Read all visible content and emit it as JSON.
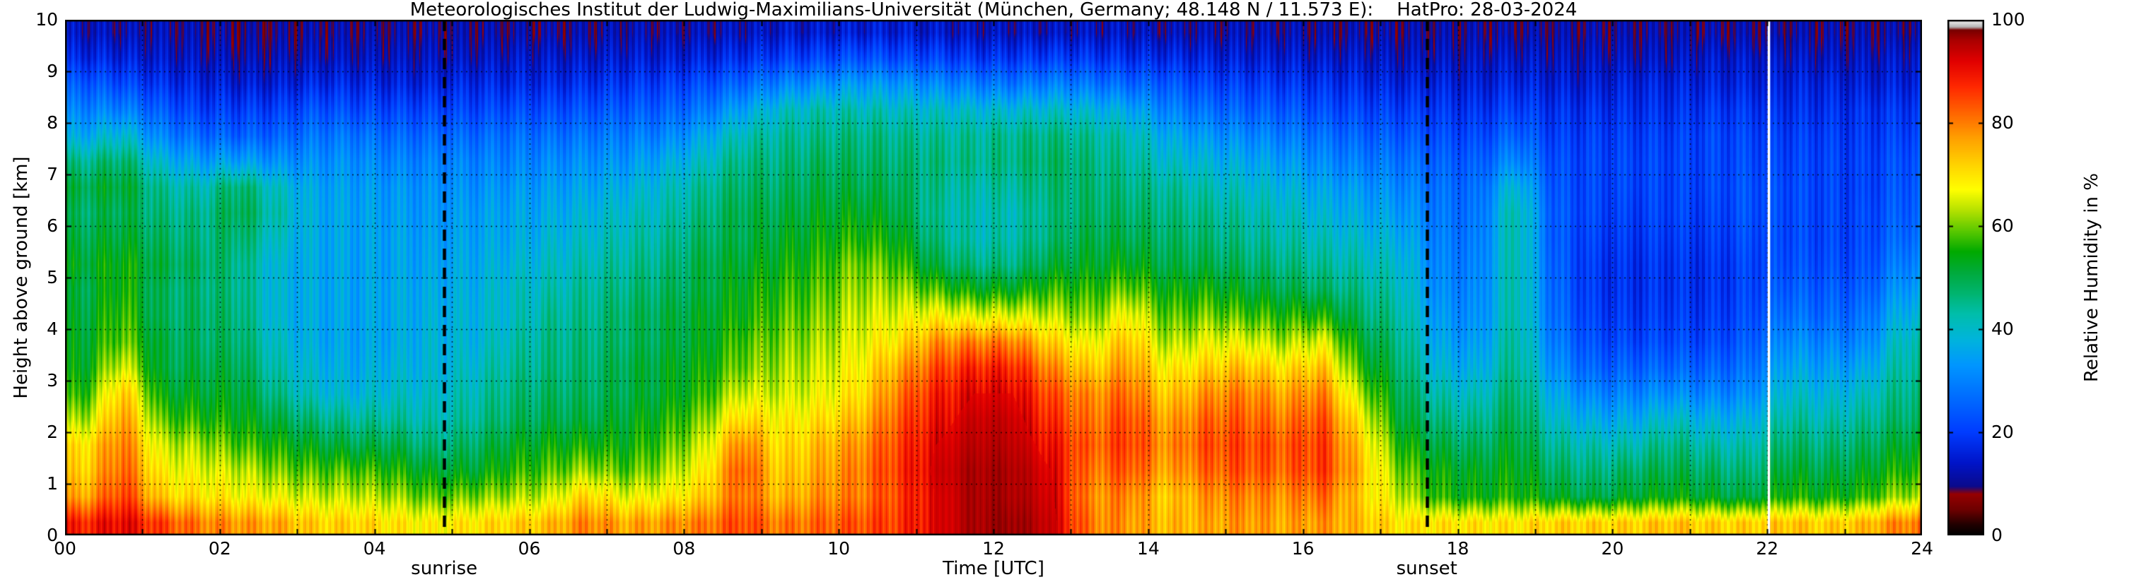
{
  "chart_data": {
    "type": "heatmap",
    "title": "Meteorologisches Institut der Ludwig-Maximilians-Universität (München, Germany; 48.148 N / 11.573 E):    HatPro: 28-03-2024",
    "xlabel": "Time [UTC]",
    "ylabel": "Height above ground [km]",
    "colorbar_label": "Relative Humidity in %",
    "xlim": [
      0,
      24
    ],
    "ylim": [
      0,
      10
    ],
    "clim": [
      0,
      100
    ],
    "x_tick_values": [
      0,
      2,
      4,
      6,
      8,
      10,
      12,
      14,
      16,
      18,
      20,
      22,
      24
    ],
    "x_tick_labels": [
      "00",
      "02",
      "04",
      "06",
      "08",
      "10",
      "12",
      "14",
      "16",
      "18",
      "20",
      "22",
      "24"
    ],
    "y_tick_values": [
      0,
      1,
      2,
      3,
      4,
      5,
      6,
      7,
      8,
      9,
      10
    ],
    "y_tick_labels": [
      "0",
      "1",
      "2",
      "3",
      "4",
      "5",
      "6",
      "7",
      "8",
      "9",
      "10"
    ],
    "colorbar_tick_values": [
      0,
      20,
      40,
      60,
      80,
      100
    ],
    "colorbar_tick_labels": [
      "0",
      "20",
      "40",
      "60",
      "80",
      "100"
    ],
    "grid": {
      "x_step_hours": 1,
      "y_step_km": 1,
      "style": "dotted",
      "color": "#000000"
    },
    "annotations": [
      {
        "type": "vline",
        "style": "dashed",
        "color": "#000000",
        "x": 4.9,
        "label": "sunrise"
      },
      {
        "type": "vline",
        "style": "dashed",
        "color": "#000000",
        "x": 17.6,
        "label": "sunset"
      },
      {
        "type": "vline",
        "style": "solid",
        "color": "#ffffff",
        "x": 22.02,
        "label": ""
      }
    ],
    "colormap": {
      "stops": [
        [
          0,
          "#000000"
        ],
        [
          2,
          "#1e0000"
        ],
        [
          5,
          "#6e0000"
        ],
        [
          8,
          "#960000"
        ],
        [
          9.5,
          "#0a0a8c"
        ],
        [
          14,
          "#0014c8"
        ],
        [
          20,
          "#003cff"
        ],
        [
          27,
          "#006eff"
        ],
        [
          33,
          "#0096ff"
        ],
        [
          38,
          "#00b4dc"
        ],
        [
          43,
          "#00beaa"
        ],
        [
          47,
          "#00b46e"
        ],
        [
          51,
          "#00aa3c"
        ],
        [
          55,
          "#00aa00"
        ],
        [
          59,
          "#5ac800"
        ],
        [
          63,
          "#b4e100"
        ],
        [
          67,
          "#ffff00"
        ],
        [
          72,
          "#ffd200"
        ],
        [
          77,
          "#ffa000"
        ],
        [
          82,
          "#ff6400"
        ],
        [
          87,
          "#ff2800"
        ],
        [
          92,
          "#e10000"
        ],
        [
          96,
          "#aa0000"
        ],
        [
          98,
          "#780000"
        ],
        [
          98.6,
          "#b4b4b4"
        ],
        [
          99.3,
          "#d8d8d8"
        ],
        [
          100,
          "#ffffff"
        ]
      ]
    },
    "grid_data": {
      "units": "percent_relative_humidity",
      "time_start": 0.25,
      "time_step": 0.5,
      "height_start": 0.25,
      "height_step": 0.5,
      "values": [
        [
          88,
          76,
          72,
          70,
          62,
          56,
          53,
          52,
          51,
          50,
          52,
          50,
          48,
          50,
          45,
          36,
          30,
          24,
          17,
          13
        ],
        [
          92,
          86,
          83,
          81,
          78,
          74,
          66,
          60,
          58,
          56,
          55,
          52,
          50,
          52,
          48,
          40,
          30,
          22,
          16,
          12
        ],
        [
          85,
          72,
          68,
          64,
          58,
          53,
          50,
          50,
          48,
          48,
          50,
          48,
          46,
          44,
          38,
          30,
          24,
          18,
          14,
          12
        ],
        [
          80,
          70,
          66,
          62,
          56,
          52,
          50,
          48,
          48,
          47,
          48,
          46,
          45,
          42,
          34,
          26,
          20,
          16,
          13,
          11
        ],
        [
          78,
          68,
          64,
          58,
          54,
          52,
          50,
          48,
          47,
          46,
          46,
          48,
          50,
          48,
          35,
          25,
          20,
          15,
          12,
          10
        ],
        [
          76,
          66,
          60,
          55,
          50,
          45,
          42,
          40,
          38,
          38,
          38,
          40,
          42,
          40,
          32,
          25,
          20,
          15,
          12,
          10
        ],
        [
          72,
          64,
          58,
          52,
          46,
          40,
          38,
          36,
          36,
          36,
          36,
          36,
          36,
          35,
          32,
          28,
          23,
          17,
          13,
          11
        ],
        [
          72,
          64,
          58,
          50,
          44,
          38,
          36,
          35,
          35,
          35,
          35,
          35,
          35,
          34,
          32,
          28,
          22,
          17,
          13,
          11
        ],
        [
          70,
          62,
          56,
          50,
          44,
          40,
          38,
          36,
          36,
          36,
          35,
          35,
          34,
          33,
          30,
          26,
          21,
          16,
          13,
          11
        ],
        [
          68,
          58,
          52,
          46,
          42,
          40,
          38,
          38,
          37,
          36,
          35,
          34,
          33,
          32,
          30,
          26,
          21,
          16,
          13,
          11
        ],
        [
          70,
          60,
          52,
          48,
          44,
          42,
          40,
          38,
          38,
          37,
          36,
          35,
          34,
          32,
          30,
          26,
          21,
          17,
          13,
          11
        ],
        [
          72,
          62,
          56,
          52,
          48,
          46,
          44,
          42,
          40,
          40,
          38,
          36,
          35,
          33,
          30,
          27,
          22,
          17,
          14,
          11
        ],
        [
          74,
          64,
          58,
          54,
          50,
          48,
          46,
          45,
          44,
          42,
          40,
          38,
          36,
          34,
          31,
          27,
          22,
          17,
          14,
          11
        ],
        [
          80,
          72,
          62,
          55,
          50,
          48,
          47,
          46,
          45,
          44,
          42,
          40,
          38,
          35,
          32,
          28,
          23,
          18,
          14,
          11
        ],
        [
          76,
          66,
          58,
          54,
          52,
          50,
          50,
          48,
          48,
          46,
          44,
          42,
          40,
          37,
          33,
          29,
          24,
          19,
          15,
          12
        ],
        [
          78,
          68,
          62,
          58,
          55,
          52,
          52,
          50,
          50,
          48,
          46,
          44,
          42,
          40,
          36,
          30,
          25,
          20,
          15,
          12
        ],
        [
          80,
          72,
          68,
          64,
          60,
          56,
          54,
          52,
          52,
          50,
          50,
          48,
          46,
          44,
          40,
          35,
          28,
          22,
          16,
          12
        ],
        [
          85,
          82,
          84,
          80,
          72,
          65,
          60,
          58,
          55,
          54,
          52,
          50,
          50,
          48,
          46,
          42,
          35,
          26,
          18,
          13
        ],
        [
          80,
          74,
          72,
          70,
          68,
          64,
          62,
          60,
          58,
          56,
          54,
          52,
          50,
          48,
          46,
          44,
          40,
          30,
          20,
          14
        ],
        [
          82,
          78,
          76,
          74,
          70,
          66,
          64,
          62,
          60,
          58,
          56,
          54,
          52,
          50,
          48,
          45,
          42,
          32,
          21,
          14
        ],
        [
          84,
          80,
          80,
          78,
          74,
          70,
          68,
          66,
          64,
          62,
          60,
          56,
          53,
          50,
          48,
          46,
          42,
          34,
          23,
          15
        ],
        [
          86,
          85,
          86,
          85,
          83,
          80,
          76,
          70,
          66,
          62,
          58,
          54,
          51,
          49,
          47,
          45,
          41,
          33,
          22,
          15
        ],
        [
          92,
          92,
          93,
          92,
          90,
          88,
          84,
          78,
          68,
          58,
          50,
          46,
          44,
          45,
          46,
          44,
          40,
          31,
          21,
          14
        ],
        [
          96,
          96,
          96,
          95,
          94,
          92,
          88,
          80,
          66,
          54,
          46,
          42,
          42,
          43,
          45,
          44,
          39,
          29,
          19,
          13
        ],
        [
          97,
          96,
          96,
          95,
          94,
          92,
          88,
          80,
          66,
          54,
          46,
          43,
          42,
          44,
          46,
          45,
          39,
          28,
          19,
          13
        ],
        [
          94,
          93,
          92,
          90,
          87,
          84,
          79,
          72,
          64,
          57,
          51,
          47,
          46,
          47,
          48,
          46,
          40,
          30,
          20,
          13
        ],
        [
          80,
          78,
          80,
          82,
          80,
          78,
          72,
          66,
          60,
          56,
          52,
          50,
          48,
          47,
          46,
          44,
          38,
          28,
          19,
          13
        ],
        [
          78,
          80,
          84,
          86,
          85,
          82,
          78,
          74,
          68,
          60,
          54,
          50,
          48,
          46,
          44,
          42,
          36,
          26,
          18,
          13
        ],
        [
          74,
          72,
          76,
          78,
          76,
          72,
          68,
          62,
          58,
          54,
          50,
          48,
          46,
          44,
          40,
          36,
          30,
          24,
          17,
          12
        ],
        [
          76,
          78,
          82,
          84,
          82,
          78,
          72,
          66,
          60,
          55,
          50,
          47,
          45,
          42,
          38,
          33,
          27,
          21,
          16,
          12
        ],
        [
          78,
          80,
          84,
          85,
          83,
          80,
          74,
          66,
          58,
          52,
          48,
          45,
          43,
          40,
          36,
          31,
          25,
          20,
          15,
          12
        ],
        [
          76,
          78,
          82,
          83,
          80,
          76,
          70,
          62,
          56,
          50,
          46,
          43,
          41,
          38,
          34,
          29,
          24,
          19,
          15,
          12
        ],
        [
          78,
          82,
          86,
          86,
          84,
          80,
          74,
          66,
          56,
          48,
          44,
          41,
          38,
          35,
          31,
          27,
          22,
          18,
          14,
          11
        ],
        [
          74,
          72,
          74,
          72,
          68,
          62,
          56,
          52,
          48,
          45,
          42,
          39,
          36,
          33,
          29,
          25,
          21,
          17,
          14,
          11
        ],
        [
          70,
          64,
          60,
          56,
          52,
          50,
          48,
          46,
          44,
          42,
          40,
          37,
          34,
          31,
          28,
          24,
          20,
          16,
          13,
          11
        ],
        [
          70,
          56,
          54,
          50,
          46,
          42,
          38,
          35,
          33,
          31,
          30,
          29,
          28,
          27,
          25,
          22,
          19,
          16,
          13,
          11
        ],
        [
          70,
          54,
          52,
          48,
          44,
          40,
          36,
          33,
          31,
          30,
          29,
          28,
          27,
          26,
          24,
          21,
          18,
          15,
          13,
          11
        ],
        [
          70,
          56,
          54,
          52,
          50,
          48,
          46,
          45,
          44,
          44,
          44,
          44,
          44,
          40,
          32,
          26,
          21,
          17,
          14,
          11
        ],
        [
          72,
          52,
          48,
          44,
          40,
          36,
          32,
          29,
          27,
          26,
          25,
          24,
          24,
          23,
          22,
          20,
          18,
          15,
          13,
          11
        ],
        [
          72,
          50,
          46,
          42,
          36,
          30,
          25,
          22,
          20,
          19,
          19,
          20,
          21,
          21,
          21,
          20,
          18,
          15,
          13,
          11
        ],
        [
          72,
          52,
          48,
          42,
          36,
          30,
          25,
          21,
          19,
          18,
          18,
          19,
          20,
          21,
          21,
          20,
          18,
          16,
          13,
          11
        ],
        [
          74,
          54,
          50,
          46,
          40,
          32,
          26,
          22,
          20,
          19,
          19,
          20,
          21,
          21,
          21,
          20,
          18,
          16,
          13,
          11
        ],
        [
          72,
          52,
          48,
          43,
          37,
          30,
          25,
          21,
          19,
          18,
          18,
          19,
          20,
          21,
          21,
          21,
          19,
          16,
          14,
          11
        ],
        [
          72,
          50,
          46,
          42,
          37,
          31,
          27,
          24,
          22,
          21,
          21,
          22,
          23,
          23,
          22,
          21,
          19,
          16,
          14,
          11
        ],
        [
          74,
          56,
          52,
          48,
          44,
          40,
          36,
          32,
          28,
          25,
          23,
          22,
          22,
          22,
          21,
          20,
          18,
          16,
          14,
          11
        ],
        [
          72,
          54,
          50,
          46,
          42,
          38,
          34,
          30,
          26,
          24,
          22,
          21,
          21,
          21,
          21,
          20,
          18,
          16,
          13,
          11
        ],
        [
          74,
          56,
          52,
          48,
          44,
          40,
          35,
          30,
          27,
          24,
          22,
          21,
          21,
          20,
          20,
          19,
          18,
          15,
          13,
          11
        ],
        [
          80,
          62,
          56,
          52,
          48,
          46,
          44,
          42,
          38,
          34,
          30,
          27,
          25,
          24,
          23,
          21,
          19,
          16,
          14,
          11
        ]
      ]
    }
  }
}
